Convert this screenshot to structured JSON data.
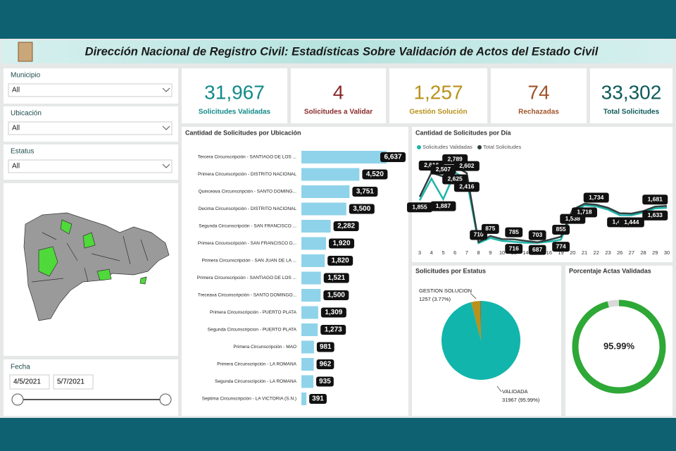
{
  "header": {
    "title": "Dirección Nacional de Registro Civil: Estadísticas Sobre Validación de Actos del Estado Civil"
  },
  "filters": [
    {
      "label": "Municipio",
      "value": "All"
    },
    {
      "label": "Ubicación",
      "value": "All"
    },
    {
      "label": "Estatus",
      "value": "All"
    }
  ],
  "date_filter": {
    "label": "Fecha",
    "start": "4/5/2021",
    "end": "5/7/2021"
  },
  "kpis": [
    {
      "value": 31967,
      "value_label": "31,967",
      "label": "Solicitudes Validadas",
      "color": "#138a8a"
    },
    {
      "value": 4,
      "value_label": "4",
      "label": "Solicitudes a Validar",
      "color": "#8a2a2a"
    },
    {
      "value": 1257,
      "value_label": "1,257",
      "label": "Gestión Solución",
      "color": "#b8921a"
    },
    {
      "value": 74,
      "value_label": "74",
      "label": "Rechazadas",
      "color": "#a0552a"
    },
    {
      "value": 33302,
      "value_label": "33,302",
      "label": "Total Solicitudes",
      "color": "#0e5a5a"
    }
  ],
  "chart_data": [
    {
      "type": "hbar",
      "title": "Cantidad de Solicitudes por Ubicación",
      "color": "#8fd3ea",
      "categories": [
        "Tercera Circunscripción - SANTIAGO DE LOS ...",
        "Primera Circunscripción - DISTRITO NACIONAL",
        "Quinceava Circunscripción - SANTO DOMING...",
        "Decima Circunscripción - DISTRITO NACIONAL",
        "Segunda Circunscripción - SAN FRANCISCO ...",
        "Primera Circunscripción - SAN FRANCISCO D...",
        "Primera Circunscripción - SAN JUAN DE LA ...",
        "Primera Circunscripción - SANTIAGO DE LOS ...",
        "Treceava Circunscripción - SANTO DOMINGO...",
        "Primera Circunscripción - PUERTO PLATA",
        "Segunda Circunscripcion - PUERTO PLATA",
        "Primera Circunscripción - MAO",
        "Primera Circunscripción - LA ROMANA",
        "Segunda Circunscripción - LA ROMANA",
        "Septima Circunscripción - LA VICTORIA (S.N.)"
      ],
      "values": [
        6637,
        4520,
        3751,
        3500,
        2282,
        1920,
        1820,
        1521,
        1500,
        1309,
        1273,
        981,
        962,
        935,
        391
      ],
      "value_labels": [
        "6,637",
        "4,520",
        "3,751",
        "3,500",
        "2,282",
        "1,920",
        "1,820",
        "1,521",
        "1,500",
        "1,309",
        "1,273",
        "981",
        "962",
        "935",
        "391"
      ]
    },
    {
      "type": "line",
      "title": "Cantidad de Solicitudes por Día",
      "categories": [
        "3",
        "4",
        "5",
        "6",
        "7",
        "8",
        "9",
        "10",
        "13",
        "14",
        "15",
        "16",
        "19",
        "20",
        "21",
        "22",
        "23",
        "26",
        "27",
        "28",
        "29",
        "30"
      ],
      "series": [
        {
          "name": "Solicitudes Validadas",
          "color": "#1fb5aa",
          "values": [
            1855,
            2450,
            1887,
            2625,
            2416,
            680,
            820,
            740,
            716,
            690,
            687,
            720,
            774,
            1538,
            1718,
            1690,
            1600,
            1446,
            1444,
            1520,
            1633,
            1650
          ],
          "value_labels": [
            "1,855",
            null,
            "1,887",
            "2,625",
            "2,416",
            null,
            null,
            null,
            "716",
            null,
            "687",
            null,
            "774",
            "1,538",
            "1,718",
            null,
            null,
            "1,446",
            "1,444",
            null,
            "1,633",
            null
          ]
        },
        {
          "name": "Total Solicitudes",
          "color": "#2f3f3f",
          "values": [
            1950,
            2616,
            2507,
            2789,
            2602,
            710,
            875,
            790,
            785,
            740,
            703,
            770,
            855,
            1600,
            1760,
            1734,
            1650,
            1500,
            1490,
            1560,
            1681,
            1700
          ],
          "value_labels": [
            null,
            "2,616",
            "2,507",
            "2,789",
            "2,602",
            "710",
            "875",
            null,
            "785",
            null,
            "703",
            null,
            "855",
            null,
            null,
            "1,734",
            null,
            null,
            null,
            null,
            "1,681",
            null
          ]
        }
      ]
    },
    {
      "type": "pie",
      "title": "Solicitudes por Estatus",
      "categories": [
        "VALIDADA",
        "GESTION SOLUCION",
        null
      ],
      "values": [
        31967,
        1257,
        74
      ],
      "value_labels": [
        "31967 (95.99%)",
        "1257 (3.77%)",
        null
      ],
      "colors": [
        "#12b5ab",
        "#b8921a",
        "#7a4a2a"
      ]
    },
    {
      "type": "donut",
      "title": "Porcentaje Actas Validadas",
      "values": [
        95.99
      ],
      "value_labels": [
        "95.99%"
      ],
      "color": "#2ea836"
    }
  ]
}
